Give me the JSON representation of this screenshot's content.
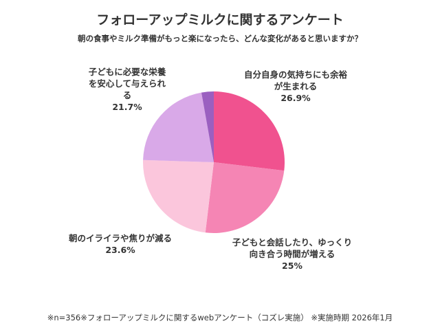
{
  "chart_data": {
    "type": "pie",
    "title": "フォローアップミルクに関するアンケート",
    "subtitle": "朝の食事やミルク準備がもっと楽になったら、どんな変化があると思いますか？",
    "footnote": "※n=356※フォローアップミルクに関するwebアンケート（コズレ実施） ※実施時期 2026年1月",
    "categories": [
      "自分自身の気持ちにも余裕が生まれる",
      "子どもと会話したり、ゆっくり向き合う時間が増える",
      "朝のイライラや焦りが減る",
      "子どもに必要な栄養を安心して与えられる",
      null
    ],
    "values": [
      26.9,
      25,
      23.6,
      21.7,
      2.8
    ],
    "value_labels": [
      "26.9%",
      "25%",
      "23.6%",
      "21.7%",
      null
    ],
    "colors": [
      "#f0528f",
      "#f585b4",
      "#fbc6dc",
      "#d9a9e8",
      "#9b5fc0"
    ]
  }
}
